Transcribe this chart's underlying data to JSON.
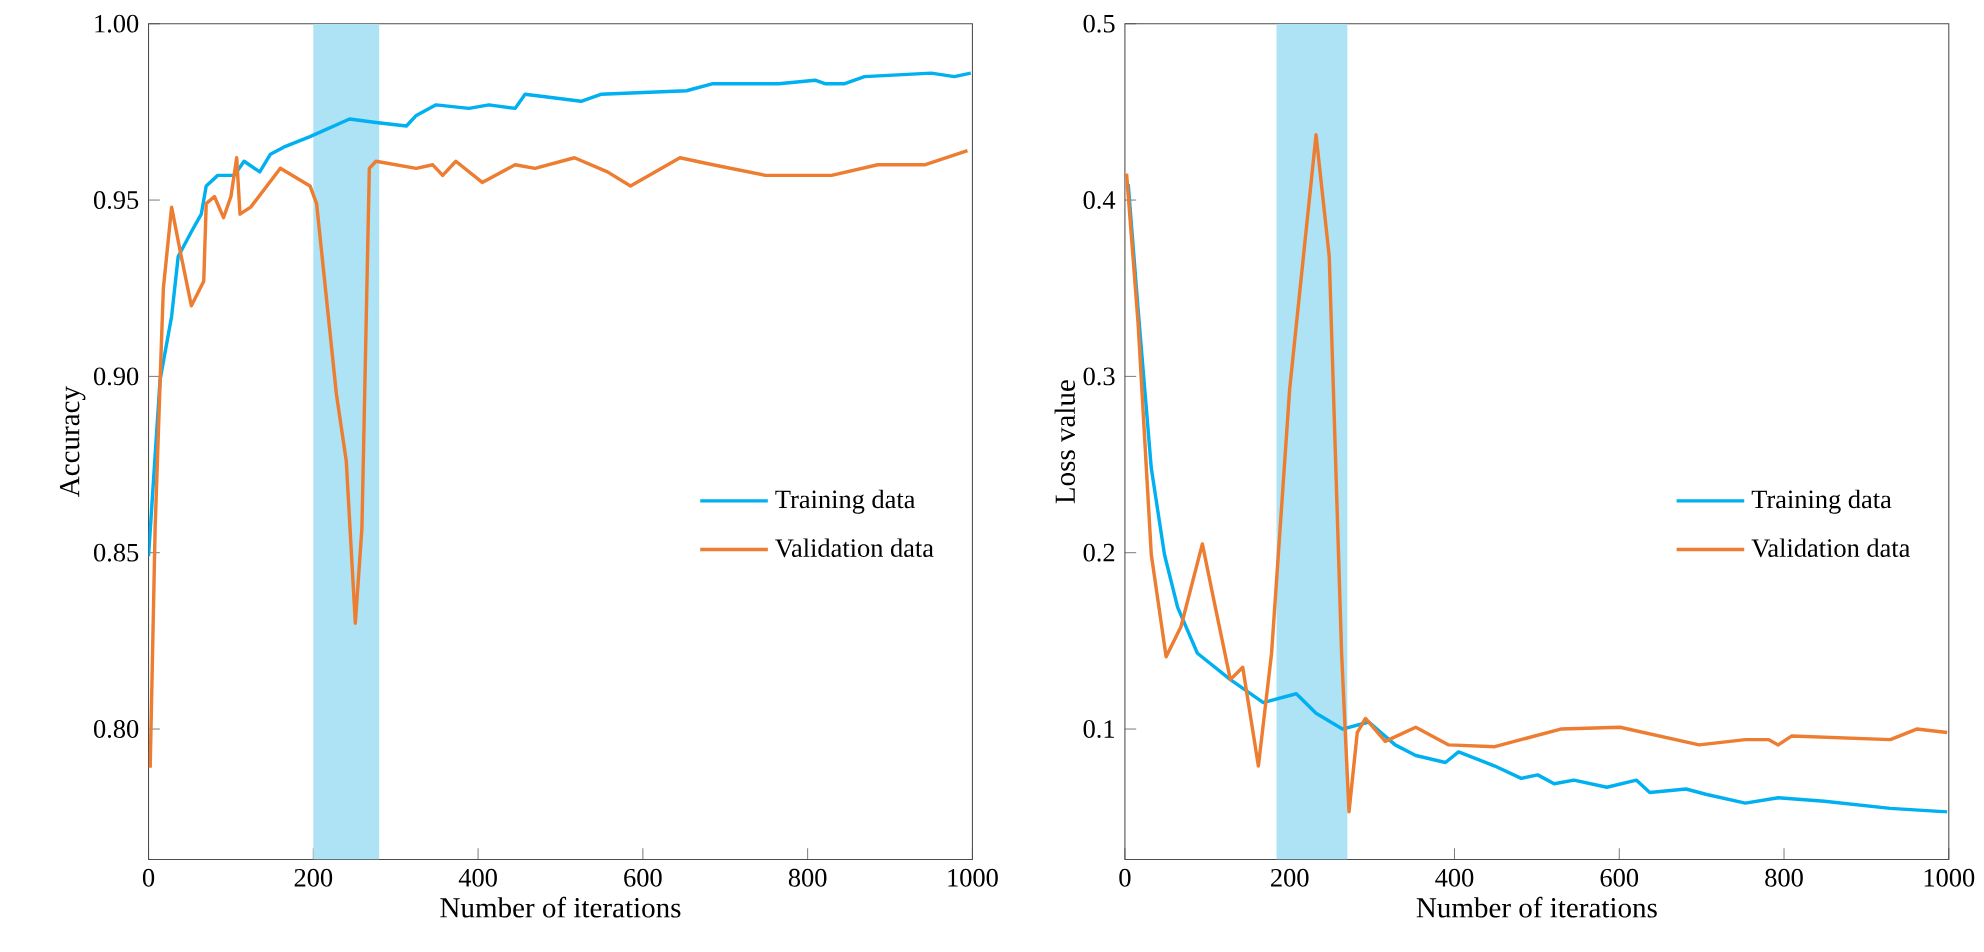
{
  "chart_data": [
    {
      "type": "line",
      "xlabel": "Number of iterations",
      "ylabel": "Accuracy",
      "xlim": [
        0,
        1000
      ],
      "ylim": [
        0.763,
        1.0
      ],
      "xticks": [
        0,
        200,
        400,
        600,
        800,
        1000
      ],
      "yticks": [
        {
          "value": 0.8,
          "label": "0.80"
        },
        {
          "value": 0.85,
          "label": "0.85"
        },
        {
          "value": 0.9,
          "label": "0.90"
        },
        {
          "value": 0.95,
          "label": "0.95"
        },
        {
          "value": 1.0,
          "label": "1.00"
        }
      ],
      "legend": "right",
      "grid": false,
      "bands": [
        {
          "axis": "x",
          "from": 200,
          "to": 280,
          "color": "#aee3f6"
        }
      ],
      "series": [
        {
          "name": "Training data",
          "color": "#00b0f0",
          "x": [
            0,
            14,
            28,
            36,
            52,
            64,
            70,
            84,
            104,
            116,
            135,
            148,
            164,
            196,
            244,
            276,
            313,
            325,
            349,
            389,
            413,
            445,
            457,
            525,
            549,
            653,
            685,
            765,
            809,
            821,
            845,
            869,
            950,
            978,
            998
          ],
          "values": [
            0.849,
            0.899,
            0.917,
            0.934,
            0.941,
            0.946,
            0.954,
            0.957,
            0.957,
            0.961,
            0.958,
            0.963,
            0.965,
            0.968,
            0.973,
            0.972,
            0.971,
            0.974,
            0.977,
            0.976,
            0.977,
            0.976,
            0.98,
            0.978,
            0.98,
            0.981,
            0.983,
            0.983,
            0.984,
            0.983,
            0.983,
            0.985,
            0.986,
            0.985,
            0.986
          ]
        },
        {
          "name": "Validation data",
          "color": "#ed7d31",
          "x": [
            2,
            8,
            16,
            18,
            28,
            38,
            52,
            67,
            70,
            80,
            91,
            100,
            107,
            111,
            124,
            160,
            196,
            204,
            228,
            240,
            251,
            259,
            268,
            276,
            325,
            345,
            357,
            373,
            405,
            445,
            469,
            517,
            557,
            585,
            645,
            685,
            749,
            829,
            885,
            942,
            994
          ],
          "values": [
            0.789,
            0.857,
            0.912,
            0.925,
            0.948,
            0.936,
            0.92,
            0.927,
            0.949,
            0.951,
            0.945,
            0.951,
            0.962,
            0.946,
            0.948,
            0.959,
            0.954,
            0.949,
            0.895,
            0.876,
            0.83,
            0.857,
            0.959,
            0.961,
            0.959,
            0.96,
            0.957,
            0.961,
            0.955,
            0.96,
            0.959,
            0.962,
            0.958,
            0.954,
            0.962,
            0.96,
            0.957,
            0.957,
            0.96,
            0.96,
            0.964
          ]
        }
      ]
    },
    {
      "type": "line",
      "xlabel": "Number of iterations",
      "ylabel": "Loss value",
      "xlim": [
        0,
        1000
      ],
      "ylim": [
        0.026,
        0.5
      ],
      "xticks": [
        0,
        200,
        400,
        600,
        800,
        1000
      ],
      "yticks": [
        0.1,
        0.2,
        0.3,
        0.4,
        0.5
      ],
      "legend": "right",
      "grid": false,
      "bands": [
        {
          "axis": "x",
          "from": 184,
          "to": 270,
          "color": "#aee3f6"
        }
      ],
      "series": [
        {
          "name": "Training data",
          "color": "#00b0f0",
          "x": [
            4,
            16,
            32,
            48,
            64,
            88,
            128,
            168,
            208,
            232,
            264,
            296,
            328,
            353,
            389,
            405,
            449,
            481,
            501,
            521,
            545,
            585,
            621,
            637,
            681,
            705,
            753,
            793,
            849,
            929,
            998
          ],
          "values": [
            0.409,
            0.338,
            0.248,
            0.199,
            0.169,
            0.143,
            0.128,
            0.115,
            0.12,
            0.109,
            0.1,
            0.104,
            0.091,
            0.085,
            0.081,
            0.087,
            0.079,
            0.072,
            0.074,
            0.069,
            0.071,
            0.067,
            0.071,
            0.064,
            0.066,
            0.063,
            0.058,
            0.061,
            0.059,
            0.055,
            0.053
          ]
        },
        {
          "name": "Validation data",
          "color": "#ed7d31",
          "x": [
            2,
            16,
            32,
            50,
            68,
            94,
            108,
            128,
            143,
            162,
            178,
            200,
            232,
            248,
            263,
            272,
            282,
            292,
            316,
            353,
            393,
            449,
            529,
            601,
            697,
            753,
            781,
            793,
            809,
            929,
            961,
            998
          ],
          "values": [
            0.415,
            0.33,
            0.199,
            0.141,
            0.158,
            0.205,
            0.173,
            0.128,
            0.135,
            0.079,
            0.143,
            0.293,
            0.437,
            0.368,
            0.143,
            0.053,
            0.098,
            0.106,
            0.093,
            0.101,
            0.091,
            0.09,
            0.1,
            0.101,
            0.091,
            0.094,
            0.094,
            0.091,
            0.096,
            0.094,
            0.1,
            0.098
          ]
        }
      ]
    }
  ]
}
